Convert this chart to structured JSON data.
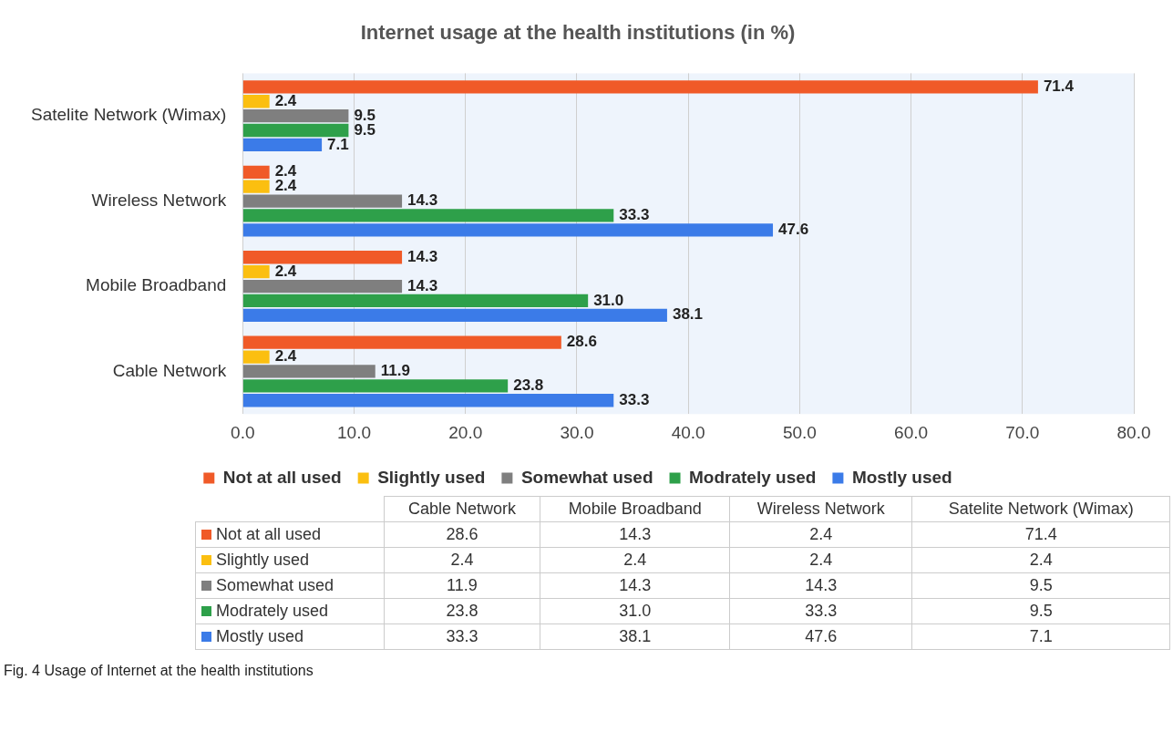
{
  "chart_data": {
    "type": "bar",
    "orientation": "horizontal",
    "title": "Internet usage at the health institutions (in %)",
    "categories": [
      "Satelite Network (Wimax)",
      "Wireless Network",
      "Mobile Broadband",
      "Cable Network"
    ],
    "series": [
      {
        "name": "Not at all used",
        "color": "#f05a28",
        "values": [
          71.4,
          2.4,
          14.3,
          28.6
        ],
        "value_labels": [
          "71.4",
          "2.4",
          "14.3",
          "28.6"
        ]
      },
      {
        "name": "Slightly used",
        "color": "#fbbf10",
        "values": [
          2.4,
          2.4,
          2.4,
          2.4
        ],
        "value_labels": [
          "2.4",
          "2.4",
          "2.4",
          "2.4"
        ]
      },
      {
        "name": "Somewhat used",
        "color": "#7f7f7f",
        "values": [
          9.5,
          14.3,
          14.3,
          11.9
        ],
        "value_labels": [
          "9.5",
          "14.3",
          "14.3",
          "11.9"
        ]
      },
      {
        "name": "Modrately used",
        "color": "#2ea04a",
        "values": [
          9.5,
          33.3,
          31.0,
          23.8
        ],
        "value_labels": [
          "9.5",
          "33.3",
          "31.0",
          "23.8"
        ]
      },
      {
        "name": "Mostly used",
        "color": "#3b7be8",
        "values": [
          7.1,
          47.6,
          38.1,
          33.3
        ],
        "value_labels": [
          "7.1",
          "47.6",
          "38.1",
          "33.3"
        ]
      }
    ],
    "xlim": [
      0,
      80
    ],
    "xticks": [
      {
        "value": 0,
        "label": "0.0"
      },
      {
        "value": 10,
        "label": "10.0"
      },
      {
        "value": 20,
        "label": "20.0"
      },
      {
        "value": 30,
        "label": "30.0"
      },
      {
        "value": 40,
        "label": "40.0"
      },
      {
        "value": 50,
        "label": "50.0"
      },
      {
        "value": 60,
        "label": "60.0"
      },
      {
        "value": 70,
        "label": "70.0"
      },
      {
        "value": 80,
        "label": "80.0"
      }
    ],
    "grid": "x",
    "legend": "bottom",
    "annotations": [
      "Fig. 4 Usage of Internet at the health institutions"
    ]
  }
}
